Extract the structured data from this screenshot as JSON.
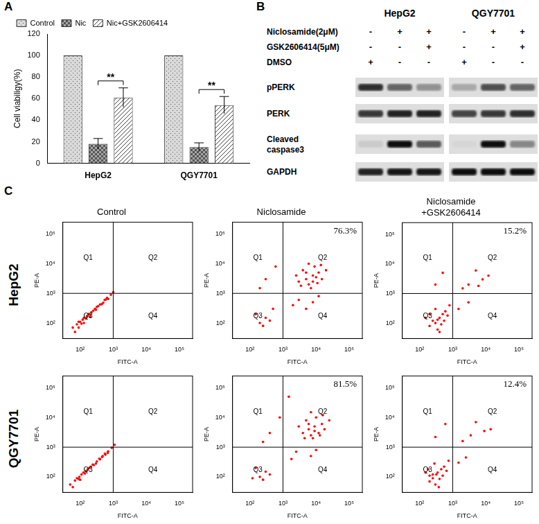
{
  "panel_labels": [
    "A",
    "B",
    "C"
  ],
  "chart_data": [
    {
      "type": "bar",
      "categories": [
        "HepG2",
        "QGY7701"
      ],
      "y_label": "Cell viabiligy(%)",
      "ylim": [
        0,
        120
      ],
      "yticks": [
        0,
        20,
        40,
        60,
        80,
        100,
        120
      ],
      "grid": false,
      "legend": "top left",
      "series": [
        {
          "name": "Control",
          "color": "#d9d9d9",
          "values": [
            100,
            100
          ]
        },
        {
          "name": "Nic",
          "color": "#a6a6a6",
          "values": [
            18,
            15
          ],
          "errors": [
            5,
            4
          ]
        },
        {
          "name": "Nic+GSK2606414",
          "color": "#ffffff",
          "values": [
            61,
            54
          ],
          "errors": [
            9,
            8
          ]
        }
      ],
      "annotations": [
        {
          "text": "**",
          "category": "HepG2",
          "between": [
            "Nic",
            "Nic+GSK2606414"
          ]
        },
        {
          "text": "**",
          "category": "QGY7701",
          "between": [
            "Nic",
            "Nic+GSK2606414"
          ]
        }
      ]
    },
    {
      "type": "scatter",
      "title": "Control",
      "x_label": "FITC-A",
      "y_label": "PE-A",
      "log": true,
      "xlim": [
        30,
        250000
      ],
      "ylim": [
        30,
        250000
      ],
      "xticks": [
        {
          "value": 100,
          "label": "10²"
        },
        {
          "value": 1000,
          "label": "10³"
        },
        {
          "value": 10000,
          "label": "10⁴"
        },
        {
          "value": 100000,
          "label": "10⁵"
        }
      ],
      "yticks": [
        {
          "value": 100,
          "label": "10²"
        },
        {
          "value": 1000,
          "label": "10³"
        },
        {
          "value": 10000,
          "label": "10⁴"
        },
        {
          "value": 100000,
          "label": "10⁵"
        }
      ],
      "grid": false,
      "color": "#ff0000",
      "marker": "circle",
      "quadrant_lines": {
        "x": 1000,
        "y": 1000
      },
      "quadrant_labels": [
        "Q1",
        "Q2",
        "Q3",
        "Q4"
      ],
      "x": [
        60,
        80,
        100,
        120,
        150,
        180,
        200,
        250,
        300,
        350,
        400,
        500,
        600,
        700,
        850,
        70,
        90,
        110,
        130,
        160,
        220,
        280,
        450,
        550,
        1000,
        130,
        90,
        200,
        320,
        650
      ],
      "values": [
        70,
        90,
        110,
        130,
        140,
        200,
        190,
        260,
        280,
        370,
        420,
        480,
        620,
        650,
        900,
        50,
        70,
        95,
        150,
        170,
        230,
        300,
        430,
        600,
        1100,
        100,
        110,
        160,
        350,
        700
      ]
    },
    {
      "type": "scatter",
      "title": "Niclosamide",
      "x_label": "FITC-A",
      "y_label": "PE-A",
      "log": true,
      "xlim": [
        30,
        250000
      ],
      "ylim": [
        30,
        250000
      ],
      "xticks": [
        {
          "value": 100,
          "label": "10²"
        },
        {
          "value": 1000,
          "label": "10³"
        },
        {
          "value": 10000,
          "label": "10⁴"
        },
        {
          "value": 100000,
          "label": "10⁵"
        }
      ],
      "yticks": [
        {
          "value": 100,
          "label": "10²"
        },
        {
          "value": 1000,
          "label": "10³"
        },
        {
          "value": 10000,
          "label": "10⁴"
        },
        {
          "value": 100000,
          "label": "10⁵"
        }
      ],
      "grid": false,
      "color": "#ff0000",
      "marker": "circle",
      "quadrant_lines": {
        "x": 1000,
        "y": 1000
      },
      "quadrant_labels": [
        "Q1",
        "Q2",
        "Q3",
        "Q4"
      ],
      "annotations": [
        {
          "text": "76.3%",
          "quadrant": "Q2"
        }
      ],
      "x": [
        5000,
        8000,
        10000,
        6000,
        12000,
        4000,
        9000,
        3000,
        15000,
        7000,
        20000,
        2500,
        11000,
        6000,
        3500,
        8000,
        14000,
        5000,
        3000,
        8000,
        2000,
        12000,
        5000,
        200,
        300,
        150,
        400,
        250,
        500,
        300,
        600,
        200
      ],
      "values": [
        3000,
        4000,
        3500,
        2000,
        5000,
        6000,
        8000,
        2500,
        3000,
        1500,
        6000,
        4000,
        2200,
        10000,
        1800,
        2500,
        9000,
        5000,
        600,
        500,
        400,
        800,
        300,
        100,
        150,
        200,
        120,
        80,
        300,
        3000,
        8000,
        1500
      ]
    },
    {
      "type": "scatter",
      "title": [
        "Niclosamide",
        "+GSK2606414"
      ],
      "x_label": "FITC-A",
      "y_label": "PE-A",
      "log": true,
      "xlim": [
        30,
        250000
      ],
      "ylim": [
        30,
        250000
      ],
      "xticks": [
        {
          "value": 100,
          "label": "10²"
        },
        {
          "value": 1000,
          "label": "10³"
        },
        {
          "value": 10000,
          "label": "10⁴"
        },
        {
          "value": 100000,
          "label": "10⁵"
        }
      ],
      "yticks": [
        {
          "value": 100,
          "label": "10²"
        },
        {
          "value": 1000,
          "label": "10³"
        },
        {
          "value": 10000,
          "label": "10⁴"
        },
        {
          "value": 100000,
          "label": "10⁵"
        }
      ],
      "grid": false,
      "color": "#ff0000",
      "marker": "circle",
      "quadrant_lines": {
        "x": 1000,
        "y": 1000
      },
      "quadrant_labels": [
        "Q1",
        "Q2",
        "Q3",
        "Q4"
      ],
      "annotations": [
        {
          "text": "15.2%",
          "quadrant": "Q2"
        }
      ],
      "x": [
        300,
        400,
        200,
        500,
        350,
        250,
        600,
        450,
        700,
        150,
        300,
        550,
        400,
        800,
        200,
        350,
        3000,
        8000,
        5000,
        2000,
        12000,
        6000,
        1500,
        3000,
        300,
        500
      ],
      "values": [
        100,
        150,
        80,
        200,
        60,
        120,
        250,
        90,
        180,
        150,
        300,
        120,
        50,
        400,
        200,
        130,
        2000,
        3000,
        6000,
        1500,
        4000,
        1800,
        300,
        500,
        2000,
        5000
      ]
    },
    {
      "type": "scatter",
      "x_label": "FITC-A",
      "y_label": "PE-A",
      "log": true,
      "xlim": [
        30,
        250000
      ],
      "ylim": [
        30,
        250000
      ],
      "xticks": [
        {
          "value": 100,
          "label": "10²"
        },
        {
          "value": 1000,
          "label": "10³"
        },
        {
          "value": 10000,
          "label": "10⁴"
        },
        {
          "value": 100000,
          "label": "10⁵"
        }
      ],
      "yticks": [
        {
          "value": 100,
          "label": "10²"
        },
        {
          "value": 1000,
          "label": "10³"
        },
        {
          "value": 10000,
          "label": "10⁴"
        },
        {
          "value": 100000,
          "label": "10⁵"
        }
      ],
      "grid": false,
      "color": "#ff0000",
      "marker": "circle",
      "quadrant_lines": {
        "x": 1000,
        "y": 1000
      },
      "quadrant_labels": [
        "Q1",
        "Q2",
        "Q3",
        "Q4"
      ],
      "x": [
        50,
        70,
        90,
        110,
        140,
        170,
        210,
        260,
        320,
        400,
        480,
        580,
        700,
        900,
        60,
        80,
        100,
        125,
        150,
        190,
        240,
        300,
        380,
        460,
        560,
        680,
        1100,
        95
      ],
      "values": [
        55,
        75,
        85,
        120,
        130,
        180,
        220,
        250,
        330,
        390,
        500,
        560,
        720,
        950,
        45,
        90,
        80,
        140,
        160,
        200,
        260,
        280,
        410,
        470,
        600,
        640,
        1200,
        100
      ]
    },
    {
      "type": "scatter",
      "x_label": "FITC-A",
      "y_label": "PE-A",
      "log": true,
      "xlim": [
        30,
        250000
      ],
      "ylim": [
        30,
        250000
      ],
      "xticks": [
        {
          "value": 100,
          "label": "10²"
        },
        {
          "value": 1000,
          "label": "10³"
        },
        {
          "value": 10000,
          "label": "10⁴"
        },
        {
          "value": 100000,
          "label": "10⁵"
        }
      ],
      "yticks": [
        {
          "value": 100,
          "label": "10²"
        },
        {
          "value": 1000,
          "label": "10³"
        },
        {
          "value": 10000,
          "label": "10⁴"
        },
        {
          "value": 100000,
          "label": "10⁵"
        }
      ],
      "grid": false,
      "color": "#ff0000",
      "marker": "circle",
      "quadrant_lines": {
        "x": 1000,
        "y": 1000
      },
      "quadrant_labels": [
        "Q1",
        "Q2",
        "Q3",
        "Q4"
      ],
      "annotations": [
        {
          "text": "81.5%",
          "quadrant": "Q2"
        }
      ],
      "x": [
        6000,
        9000,
        12000,
        7000,
        15000,
        5000,
        10000,
        4000,
        18000,
        8000,
        25000,
        3000,
        13000,
        7000,
        4500,
        9000,
        16000,
        6000,
        2500,
        7000,
        1800,
        10000,
        200,
        300,
        150,
        400,
        250,
        120,
        400,
        800,
        250,
        1500
      ],
      "values": [
        4000,
        5000,
        3000,
        2500,
        6000,
        8000,
        10000,
        3000,
        4000,
        2000,
        8000,
        5000,
        2500,
        15000,
        2000,
        3500,
        12000,
        6000,
        700,
        500,
        400,
        800,
        100,
        150,
        200,
        120,
        80,
        90,
        3000,
        10000,
        1500,
        50000
      ]
    },
    {
      "type": "scatter",
      "x_label": "FITC-A",
      "y_label": "PE-A",
      "log": true,
      "xlim": [
        30,
        250000
      ],
      "ylim": [
        30,
        250000
      ],
      "xticks": [
        {
          "value": 100,
          "label": "10²"
        },
        {
          "value": 1000,
          "label": "10³"
        },
        {
          "value": 10000,
          "label": "10⁴"
        },
        {
          "value": 100000,
          "label": "10⁵"
        }
      ],
      "yticks": [
        {
          "value": 100,
          "label": "10²"
        },
        {
          "value": 1000,
          "label": "10³"
        },
        {
          "value": 10000,
          "label": "10⁴"
        },
        {
          "value": 100000,
          "label": "10⁵"
        }
      ],
      "grid": false,
      "color": "#ff0000",
      "marker": "circle",
      "quadrant_lines": {
        "x": 1000,
        "y": 1000
      },
      "quadrant_labels": [
        "Q1",
        "Q2",
        "Q3",
        "Q4"
      ],
      "annotations": [
        {
          "text": "12.4%",
          "quadrant": "Q2"
        }
      ],
      "x": [
        250,
        350,
        200,
        450,
        300,
        200,
        550,
        400,
        650,
        150,
        280,
        500,
        380,
        750,
        180,
        320,
        3500,
        9000,
        5000,
        2000,
        14000,
        1500,
        2500,
        300,
        600,
        250
      ],
      "values": [
        90,
        140,
        70,
        180,
        55,
        110,
        220,
        85,
        160,
        140,
        280,
        110,
        45,
        350,
        180,
        120,
        2500,
        3500,
        7000,
        1600,
        4000,
        300,
        450,
        2200,
        6000,
        120
      ]
    }
  ],
  "flow_row_labels": [
    "HepG2",
    "QGY7701"
  ],
  "blot": {
    "cell_lines": [
      "HepG2",
      "QGY7701"
    ],
    "treatments": [
      {
        "label": "Niclosamide(2μM)",
        "signs": [
          [
            "-",
            "+",
            "+"
          ],
          [
            "-",
            "+",
            "+"
          ]
        ]
      },
      {
        "label": "GSK2606414(5μM)",
        "signs": [
          [
            "-",
            "-",
            "+"
          ],
          [
            "-",
            "-",
            "+"
          ]
        ]
      },
      {
        "label": "DMSO",
        "signs": [
          [
            "+",
            "-",
            "-"
          ],
          [
            "+",
            "-",
            "-"
          ]
        ]
      }
    ],
    "bands": [
      {
        "label": [
          "pPERK"
        ],
        "intensity": [
          [
            0.8,
            0.55,
            0.35
          ],
          [
            0.25,
            0.65,
            0.55
          ]
        ]
      },
      {
        "label": [
          "PERK"
        ],
        "intensity": [
          [
            0.75,
            0.85,
            0.85
          ],
          [
            0.7,
            0.75,
            0.8
          ]
        ]
      },
      {
        "label": [
          "Cleaved",
          "caspase3"
        ],
        "intensity": [
          [
            0.1,
            0.95,
            0.6
          ],
          [
            0.05,
            0.95,
            0.4
          ]
        ]
      },
      {
        "label": [
          "GAPDH"
        ],
        "intensity": [
          [
            0.85,
            0.9,
            0.9
          ],
          [
            0.95,
            0.95,
            0.95
          ]
        ]
      }
    ]
  }
}
